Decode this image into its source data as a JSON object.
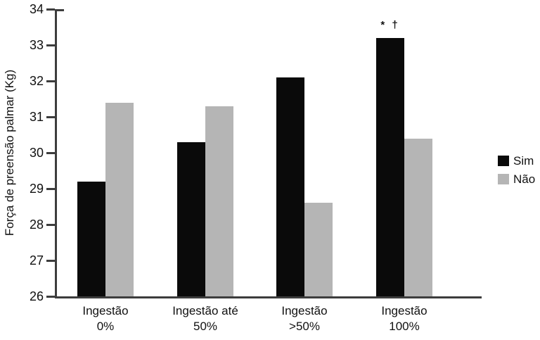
{
  "chart_data": {
    "type": "bar",
    "title": "",
    "ylabel": "Força de preensão palmar (Kg)",
    "xlabel": "",
    "ylim": [
      26,
      34
    ],
    "ytick_step": 1,
    "grid": false,
    "legend_position": "right",
    "categories": [
      [
        "Ingestão",
        "0%"
      ],
      [
        "Ingestão até",
        "50%"
      ],
      [
        "Ingestão",
        ">50%"
      ],
      [
        "Ingestão",
        "100%"
      ]
    ],
    "series": [
      {
        "name": "Sim",
        "color": "#0a0a0a",
        "values": [
          29.2,
          30.3,
          32.1,
          33.2
        ]
      },
      {
        "name": "Não",
        "color": "#b5b5b5",
        "values": [
          31.4,
          31.3,
          28.6,
          30.4
        ]
      }
    ],
    "annotation": {
      "text": "* †",
      "category_index": 3,
      "series_index": 0
    },
    "colors": {
      "axis": "#3d3d3d",
      "text": "#111111",
      "background": "#ffffff"
    }
  }
}
